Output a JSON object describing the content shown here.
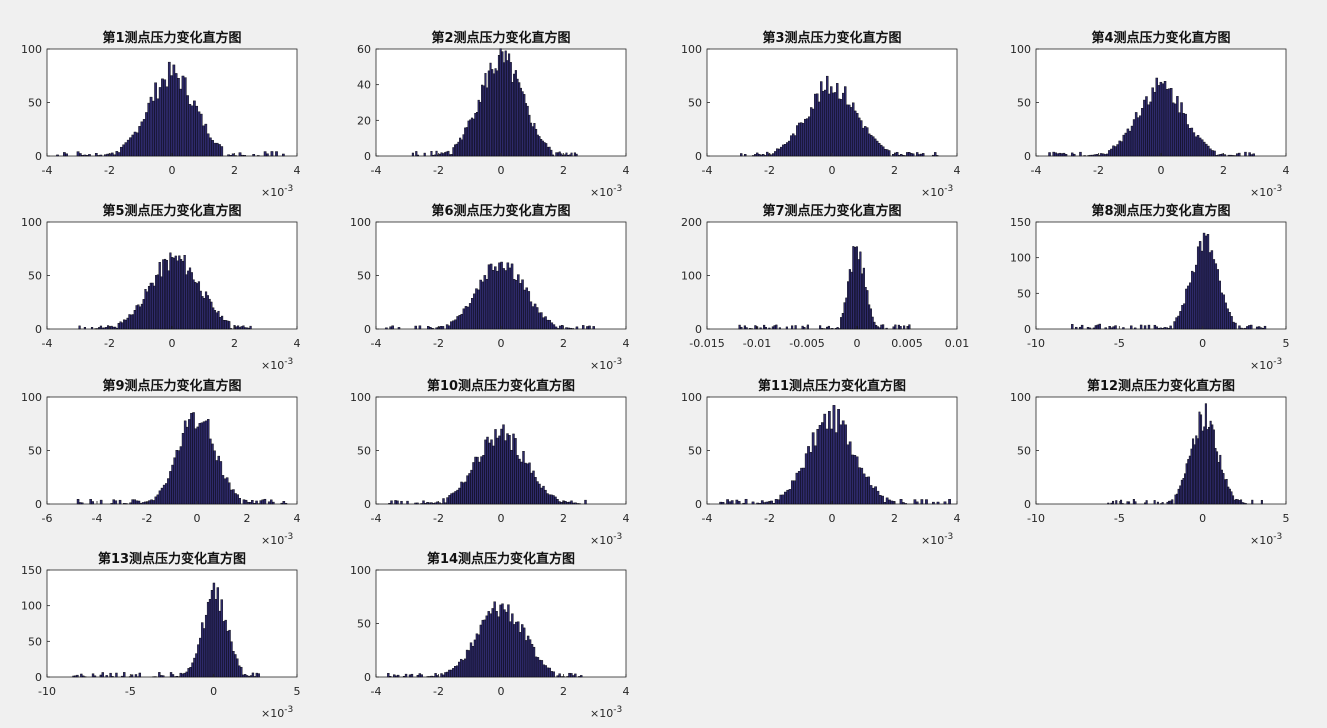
{
  "chart_data": [
    {
      "type": "bar",
      "title": "第1测点压力变化直方图",
      "xlim": [
        -4,
        4
      ],
      "ylim": [
        0,
        100
      ],
      "xticks": [
        "-4",
        "-2",
        "0",
        "2",
        "4"
      ],
      "yticks": [
        "0",
        "50",
        "100"
      ],
      "x_exponent": "-3",
      "center": 0.0,
      "spread": 0.75,
      "peak": 82,
      "tail": [
        -3.7,
        3.6
      ]
    },
    {
      "type": "bar",
      "title": "第2测点压力变化直方图",
      "xlim": [
        -4,
        4
      ],
      "ylim": [
        0,
        60
      ],
      "xticks": [
        "-4",
        "-2",
        "0",
        "2",
        "4"
      ],
      "yticks": [
        "0",
        "20",
        "40",
        "60"
      ],
      "x_exponent": "-3",
      "center": 0.0,
      "spread": 0.7,
      "peak": 57,
      "tail": [
        -2.9,
        2.5
      ]
    },
    {
      "type": "bar",
      "title": "第3测点压力变化直方图",
      "xlim": [
        -4,
        4
      ],
      "ylim": [
        0,
        100
      ],
      "xticks": [
        "-4",
        "-2",
        "0",
        "2",
        "4"
      ],
      "yticks": [
        "0",
        "50",
        "100"
      ],
      "x_exponent": "-3",
      "center": 0.0,
      "spread": 0.8,
      "peak": 71,
      "tail": [
        -3.0,
        3.4
      ]
    },
    {
      "type": "bar",
      "title": "第4测点压力变化直方图",
      "xlim": [
        -4,
        4
      ],
      "ylim": [
        0,
        100
      ],
      "xticks": [
        "-4",
        "-2",
        "0",
        "2",
        "4"
      ],
      "yticks": [
        "0",
        "50",
        "100"
      ],
      "x_exponent": "-3",
      "center": 0.0,
      "spread": 0.75,
      "peak": 70,
      "tail": [
        -3.6,
        3.0
      ]
    },
    {
      "type": "bar",
      "title": "第5测点压力变化直方图",
      "xlim": [
        -4,
        4
      ],
      "ylim": [
        0,
        100
      ],
      "xticks": [
        "-4",
        "-2",
        "0",
        "2",
        "4"
      ],
      "yticks": [
        "0",
        "50",
        "100"
      ],
      "x_exponent": "-3",
      "center": 0.1,
      "spread": 0.8,
      "peak": 70,
      "tail": [
        -3.1,
        2.6
      ]
    },
    {
      "type": "bar",
      "title": "第6测点压力变化直方图",
      "xlim": [
        -4,
        4
      ],
      "ylim": [
        0,
        100
      ],
      "xticks": [
        "-4",
        "-2",
        "0",
        "2",
        "4"
      ],
      "yticks": [
        "0",
        "50",
        "100"
      ],
      "x_exponent": "-3",
      "center": 0.0,
      "spread": 0.75,
      "peak": 67,
      "tail": [
        -3.7,
        3.0
      ]
    },
    {
      "type": "bar",
      "title": "第7测点压力变化直方图",
      "xlim": [
        -0.015,
        0.01
      ],
      "ylim": [
        0,
        200
      ],
      "xticks": [
        "-0.015",
        "-0.01",
        "-0.005",
        "0",
        "0.005",
        "0.01"
      ],
      "yticks": [
        "0",
        "100",
        "200"
      ],
      "x_exponent": "",
      "center": 0.0,
      "spread": 0.0008,
      "peak": 160,
      "tail": [
        -0.012,
        0.0055
      ]
    },
    {
      "type": "bar",
      "title": "第8测点压力变化直方图",
      "xlim": [
        -10,
        5
      ],
      "ylim": [
        0,
        150
      ],
      "xticks": [
        "-10",
        "-5",
        "0",
        "5"
      ],
      "yticks": [
        "0",
        "50",
        "100",
        "150"
      ],
      "x_exponent": "-3",
      "center": 0.1,
      "spread": 0.8,
      "peak": 133,
      "tail": [
        -8.0,
        3.8
      ]
    },
    {
      "type": "bar",
      "title": "第9测点压力变化直方图",
      "xlim": [
        -6,
        4
      ],
      "ylim": [
        0,
        100
      ],
      "xticks": [
        "-6",
        "-4",
        "-2",
        "0",
        "2",
        "4"
      ],
      "yticks": [
        "0",
        "50",
        "100"
      ],
      "x_exponent": "-3",
      "center": 0.0,
      "spread": 0.75,
      "peak": 88,
      "tail": [
        -4.8,
        3.6
      ]
    },
    {
      "type": "bar",
      "title": "第10测点压力变化直方图",
      "xlim": [
        -4,
        4
      ],
      "ylim": [
        0,
        100
      ],
      "xticks": [
        "-4",
        "-2",
        "0",
        "2",
        "4"
      ],
      "yticks": [
        "0",
        "50",
        "100"
      ],
      "x_exponent": "-3",
      "center": 0.0,
      "spread": 0.8,
      "peak": 70,
      "tail": [
        -3.6,
        2.8
      ]
    },
    {
      "type": "bar",
      "title": "第11测点压力变化直方图",
      "xlim": [
        -4,
        4
      ],
      "ylim": [
        0,
        100
      ],
      "xticks": [
        "-4",
        "-2",
        "0",
        "2",
        "4"
      ],
      "yticks": [
        "0",
        "50",
        "100"
      ],
      "x_exponent": "-3",
      "center": 0.0,
      "spread": 0.75,
      "peak": 86,
      "tail": [
        -3.6,
        3.8
      ]
    },
    {
      "type": "bar",
      "title": "第12测点压力变化直方图",
      "xlim": [
        -10,
        5
      ],
      "ylim": [
        0,
        100
      ],
      "xticks": [
        "-10",
        "-5",
        "0",
        "5"
      ],
      "yticks": [
        "0",
        "50",
        "100"
      ],
      "x_exponent": "-3",
      "center": 0.1,
      "spread": 0.8,
      "peak": 88,
      "tail": [
        -6.0,
        3.6
      ]
    },
    {
      "type": "bar",
      "title": "第13测点压力变化直方图",
      "xlim": [
        -10,
        5
      ],
      "ylim": [
        0,
        150
      ],
      "xticks": [
        "-10",
        "-5",
        "0",
        "5"
      ],
      "yticks": [
        "0",
        "50",
        "100",
        "150"
      ],
      "x_exponent": "-3",
      "center": 0.1,
      "spread": 0.75,
      "peak": 125,
      "tail": [
        -8.7,
        3.0
      ]
    },
    {
      "type": "bar",
      "title": "第14测点压力变化直方图",
      "xlim": [
        -4,
        4
      ],
      "ylim": [
        0,
        100
      ],
      "xticks": [
        "-4",
        "-2",
        "0",
        "2",
        "4"
      ],
      "yticks": [
        "0",
        "50",
        "100"
      ],
      "x_exponent": "-3",
      "center": 0.0,
      "spread": 0.75,
      "peak": 70,
      "tail": [
        -3.7,
        2.6
      ]
    }
  ],
  "colors": {
    "bar": "#2e2a6a",
    "axes_bg": "#ffffff",
    "figure_bg": "#f0f0f0"
  }
}
